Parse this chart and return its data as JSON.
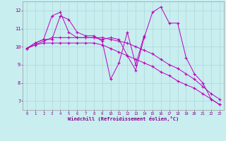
{
  "background_color": "#c8eef0",
  "grid_color": "#b0d8d8",
  "line_color": "#bb00bb",
  "marker_color": "#bb00bb",
  "xlabel": "Windchill (Refroidissement éolien,°C)",
  "xlabel_color": "#880088",
  "tick_color": "#880088",
  "xlim": [
    -0.5,
    23.5
  ],
  "ylim": [
    6.5,
    12.5
  ],
  "yticks": [
    7,
    8,
    9,
    10,
    11,
    12
  ],
  "xticks": [
    0,
    1,
    2,
    3,
    4,
    5,
    6,
    7,
    8,
    9,
    10,
    11,
    12,
    13,
    14,
    15,
    16,
    17,
    18,
    19,
    20,
    21,
    22,
    23
  ],
  "series": [
    [
      9.9,
      10.2,
      10.4,
      11.7,
      11.9,
      10.8,
      10.5,
      10.5,
      10.5,
      10.4,
      10.5,
      10.4,
      9.5,
      8.7,
      10.5,
      11.9,
      12.2,
      11.3,
      11.3,
      9.4,
      8.5,
      8.0,
      7.1,
      6.8
    ],
    [
      9.9,
      10.2,
      10.4,
      10.4,
      11.7,
      11.5,
      10.8,
      10.6,
      10.6,
      10.3,
      8.2,
      9.1,
      10.8,
      9.0,
      10.6,
      null,
      null,
      null,
      null,
      null,
      null,
      null,
      null,
      null
    ],
    [
      9.9,
      10.1,
      10.3,
      10.5,
      10.5,
      10.5,
      10.5,
      10.5,
      10.5,
      10.5,
      10.4,
      10.3,
      10.2,
      10.0,
      9.8,
      9.6,
      9.3,
      9.0,
      8.8,
      8.5,
      8.2,
      7.8,
      7.4,
      7.1
    ],
    [
      9.9,
      10.1,
      10.2,
      10.2,
      10.2,
      10.2,
      10.2,
      10.2,
      10.2,
      10.1,
      9.9,
      9.7,
      9.5,
      9.3,
      9.1,
      8.9,
      8.6,
      8.4,
      8.1,
      7.9,
      7.7,
      7.4,
      7.1,
      6.8
    ]
  ]
}
